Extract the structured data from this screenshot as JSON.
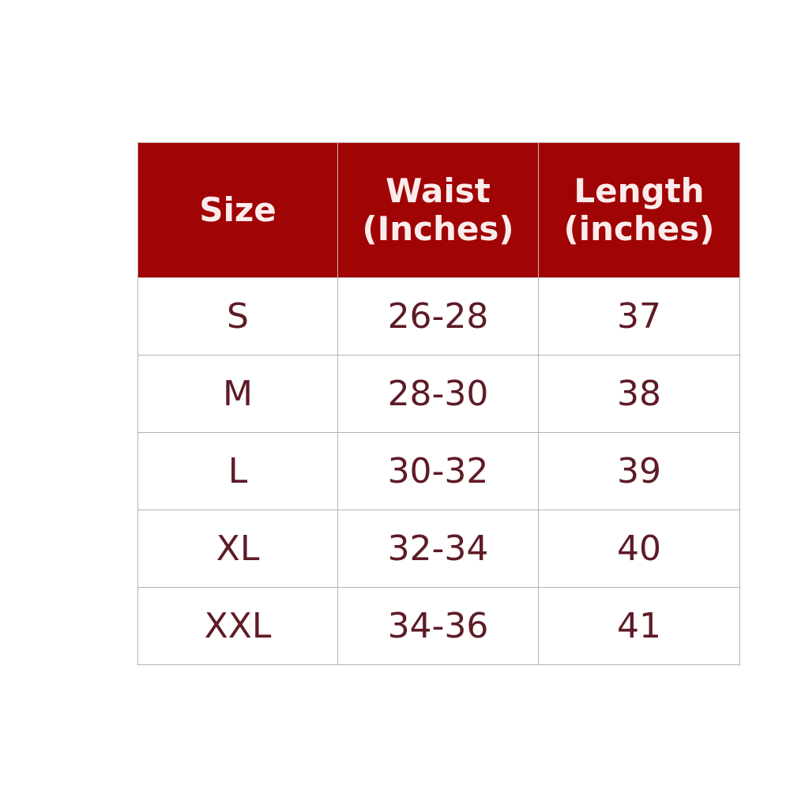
{
  "header_color": "#a00404",
  "columns": [
    {
      "line1": "Size",
      "line2": ""
    },
    {
      "line1": "Waist",
      "line2": "(Inches)"
    },
    {
      "line1": "Length",
      "line2": "(inches)"
    }
  ],
  "rows": [
    [
      "S",
      "26-28",
      "37"
    ],
    [
      "M",
      "28-30",
      "38"
    ],
    [
      "L",
      "30-32",
      "39"
    ],
    [
      "XL",
      "32-34",
      "40"
    ],
    [
      "XXL",
      "34-36",
      "41"
    ]
  ]
}
